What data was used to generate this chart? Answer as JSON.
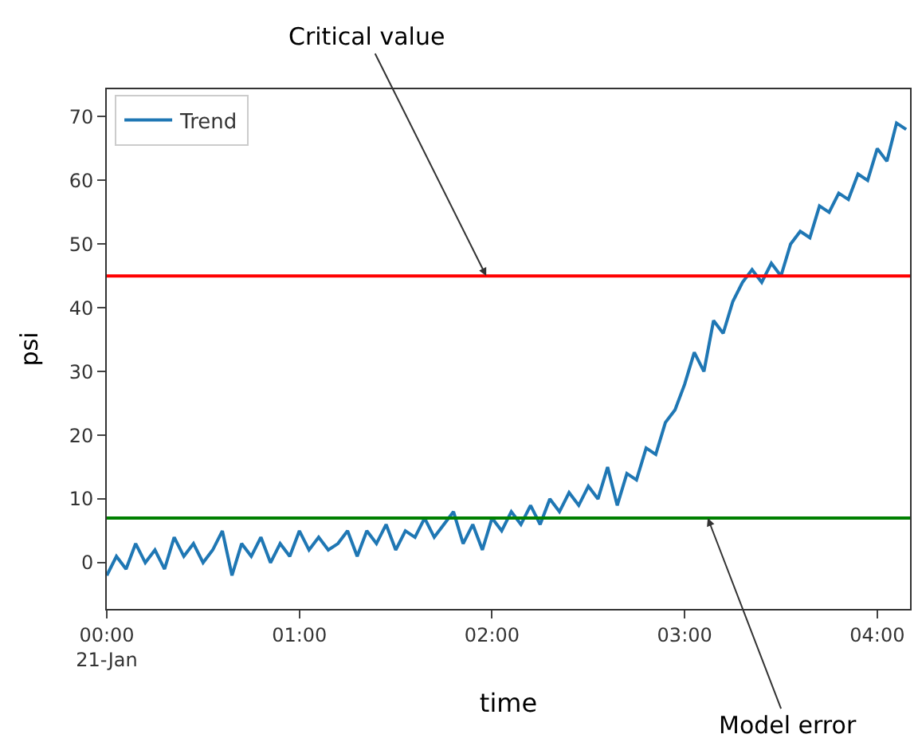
{
  "chart_data": {
    "type": "line",
    "xlabel": "time",
    "ylabel": "psi",
    "x": [
      0,
      0.05,
      0.1,
      0.15,
      0.2,
      0.25,
      0.3,
      0.35,
      0.4,
      0.45,
      0.5,
      0.55,
      0.6,
      0.65,
      0.7,
      0.75,
      0.8,
      0.85,
      0.9,
      0.95,
      1,
      1.05,
      1.1,
      1.15,
      1.2,
      1.25,
      1.3,
      1.35,
      1.4,
      1.45,
      1.5,
      1.55,
      1.6,
      1.65,
      1.7,
      1.75,
      1.8,
      1.85,
      1.9,
      1.95,
      2,
      2.05,
      2.1,
      2.15,
      2.2,
      2.25,
      2.3,
      2.35,
      2.4,
      2.45,
      2.5,
      2.55,
      2.6,
      2.65,
      2.7,
      2.75,
      2.8,
      2.85,
      2.9,
      2.95,
      3,
      3.05,
      3.1,
      3.15,
      3.2,
      3.25,
      3.3,
      3.35,
      3.4,
      3.45,
      3.5,
      3.55,
      3.6,
      3.65,
      3.7,
      3.75,
      3.8,
      3.85,
      3.9,
      3.95,
      4,
      4.05,
      4.1,
      4.15
    ],
    "series": [
      {
        "name": "Trend",
        "color": "#1f77b4",
        "values": [
          -2,
          1,
          -1,
          3,
          0,
          2,
          -1,
          4,
          1,
          3,
          0,
          2,
          5,
          -2,
          3,
          1,
          4,
          0,
          3,
          1,
          5,
          2,
          4,
          2,
          3,
          5,
          1,
          5,
          3,
          6,
          2,
          5,
          4,
          7,
          4,
          6,
          8,
          3,
          6,
          2,
          7,
          5,
          8,
          6,
          9,
          6,
          10,
          8,
          11,
          9,
          12,
          10,
          15,
          9,
          14,
          13,
          18,
          17,
          22,
          24,
          28,
          33,
          30,
          38,
          36,
          41,
          44,
          46,
          44,
          47,
          45,
          50,
          52,
          51,
          56,
          55,
          58,
          57,
          61,
          60,
          65,
          63,
          69,
          68
        ]
      }
    ],
    "xlim": [
      0,
      4.17
    ],
    "ylim": [
      -7.25,
      74.3
    ],
    "xticks": [
      {
        "value": 0,
        "label": "00:00\n21-Jan"
      },
      {
        "value": 1,
        "label": "01:00"
      },
      {
        "value": 2,
        "label": "02:00"
      },
      {
        "value": 3,
        "label": "03:00"
      },
      {
        "value": 4,
        "label": "04:00"
      }
    ],
    "yticks": [
      0,
      10,
      20,
      30,
      40,
      50,
      60,
      70
    ],
    "ref_lines": [
      {
        "axis": "y",
        "value": 45,
        "color": "#ff0000"
      },
      {
        "axis": "y",
        "value": 7,
        "color": "#008000"
      }
    ],
    "annotations": [
      {
        "text": "Critical value",
        "x": 1.97,
        "y": 45
      },
      {
        "text": "Model error",
        "x": 3.12,
        "y": 7
      }
    ],
    "legend": "top left",
    "line_style": "solid",
    "marker": "none"
  }
}
